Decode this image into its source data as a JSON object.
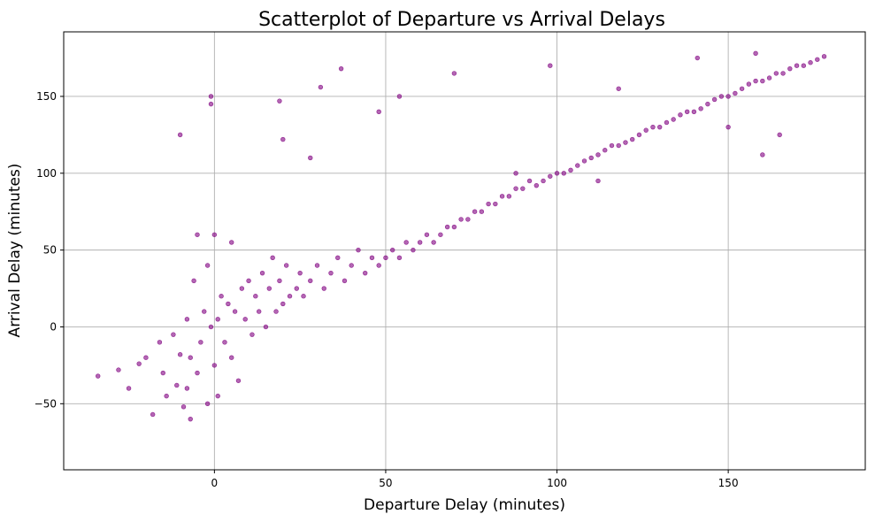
{
  "chart_data": {
    "type": "scatter",
    "title": "Scatterplot of Departure vs Arrival Delays",
    "xlabel": "Departure Delay (minutes)",
    "ylabel": "Arrival Delay (minutes)",
    "xlim": [
      -44,
      190
    ],
    "ylim": [
      -93,
      192
    ],
    "x_ticks": [
      0,
      50,
      100,
      150
    ],
    "y_ticks": [
      -50,
      0,
      50,
      100,
      150
    ],
    "grid": true,
    "legend": "none",
    "colors": {
      "points": "#800080",
      "grid": "#b0b0b0"
    },
    "series": [
      {
        "description_of_trend": "",
        "x": [
          -34,
          -28,
          -25,
          -22,
          -20,
          -18,
          -16,
          -15,
          -14,
          -12,
          -11,
          -10,
          -9,
          -8,
          -8,
          -7,
          -6,
          -5,
          -5,
          -4,
          -3,
          -2,
          -2,
          -1,
          0,
          0,
          1,
          1,
          2,
          3,
          4,
          5,
          5,
          6,
          7,
          8,
          9,
          10,
          11,
          12,
          13,
          14,
          15,
          16,
          17,
          18,
          19,
          20,
          21,
          22,
          24,
          25,
          26,
          28,
          30,
          32,
          34,
          36,
          38,
          40,
          42,
          44,
          46,
          48,
          50,
          52,
          54,
          56,
          58,
          60,
          62,
          64,
          66,
          68,
          70,
          72,
          74,
          76,
          78,
          80,
          82,
          84,
          86,
          88,
          90,
          92,
          94,
          96,
          98,
          100,
          102,
          104,
          106,
          108,
          110,
          112,
          114,
          116,
          118,
          120,
          122,
          124,
          126,
          128,
          130,
          132,
          134,
          136,
          138,
          140,
          142,
          144,
          146,
          148,
          150,
          152,
          154,
          156,
          158,
          160,
          162,
          164,
          166,
          168,
          170,
          172,
          174,
          176,
          178,
          -1,
          -1,
          19,
          37,
          31,
          98,
          141,
          158,
          160,
          118,
          48,
          54,
          70,
          -10,
          -7,
          20,
          28,
          88,
          112,
          150,
          165
        ],
        "y": [
          -32,
          -28,
          -40,
          -24,
          -20,
          -57,
          -10,
          -30,
          -45,
          -5,
          -38,
          -18,
          -52,
          5,
          -40,
          -20,
          30,
          -30,
          60,
          -10,
          10,
          -50,
          40,
          0,
          -25,
          60,
          5,
          -45,
          20,
          -10,
          15,
          -20,
          55,
          10,
          -35,
          25,
          5,
          30,
          -5,
          20,
          10,
          35,
          0,
          25,
          45,
          10,
          30,
          15,
          40,
          20,
          25,
          35,
          20,
          30,
          40,
          25,
          35,
          45,
          30,
          40,
          50,
          35,
          45,
          40,
          45,
          50,
          45,
          55,
          50,
          55,
          60,
          55,
          60,
          65,
          65,
          70,
          70,
          75,
          75,
          80,
          80,
          85,
          85,
          90,
          90,
          95,
          92,
          95,
          98,
          100,
          100,
          102,
          105,
          108,
          110,
          112,
          115,
          118,
          118,
          120,
          122,
          125,
          128,
          130,
          130,
          133,
          135,
          138,
          140,
          140,
          142,
          145,
          148,
          150,
          150,
          152,
          155,
          158,
          160,
          160,
          162,
          165,
          165,
          168,
          170,
          170,
          172,
          174,
          176,
          150,
          145,
          147,
          168,
          156,
          170,
          175,
          178,
          112,
          155,
          140,
          150,
          165,
          125,
          -60,
          122,
          110,
          100,
          95,
          130,
          125
        ]
      }
    ]
  }
}
